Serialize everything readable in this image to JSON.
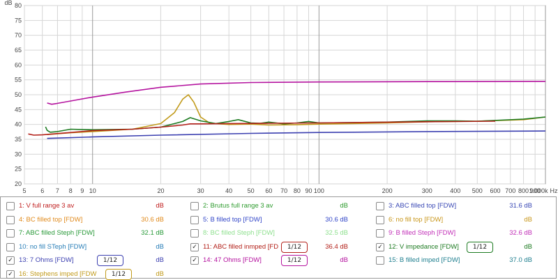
{
  "chart_data": {
    "type": "line",
    "y_unit_label": "dB",
    "x_unit_label": "Hz",
    "xscale": "log",
    "xlim": [
      5,
      1000
    ],
    "ylim": [
      20,
      80
    ],
    "grid": true,
    "yticks": [
      "20",
      "25",
      "30",
      "35",
      "40",
      "45",
      "50",
      "55",
      "60",
      "65",
      "70",
      "75",
      "80"
    ],
    "xticks": [
      {
        "v": 5,
        "t": "5"
      },
      {
        "v": 6,
        "t": "6"
      },
      {
        "v": 7,
        "t": "7"
      },
      {
        "v": 8,
        "t": "8"
      },
      {
        "v": 9,
        "t": "9"
      },
      {
        "v": 10,
        "t": "10"
      },
      {
        "v": 20,
        "t": "20"
      },
      {
        "v": 30,
        "t": "30"
      },
      {
        "v": 40,
        "t": "40"
      },
      {
        "v": 50,
        "t": "50"
      },
      {
        "v": 60,
        "t": "60"
      },
      {
        "v": 70,
        "t": "70"
      },
      {
        "v": 80,
        "t": "80"
      },
      {
        "v": 90,
        "t": "90"
      },
      {
        "v": 100,
        "t": "100"
      },
      {
        "v": 200,
        "t": "200"
      },
      {
        "v": 300,
        "t": "300"
      },
      {
        "v": 400,
        "t": "400"
      },
      {
        "v": 500,
        "t": "500"
      },
      {
        "v": 600,
        "t": "600"
      },
      {
        "v": 700,
        "t": "700"
      },
      {
        "v": 800,
        "t": "800"
      },
      {
        "v": 900,
        "t": "900"
      },
      {
        "v": 1000,
        "t": "1.000k"
      }
    ],
    "series": [
      {
        "name": "14: 47 Ohms [FDW]",
        "color": "#b4129e",
        "points": [
          [
            6.3,
            47.2
          ],
          [
            6.6,
            46.8
          ],
          [
            7,
            47.1
          ],
          [
            8,
            47.9
          ],
          [
            10,
            49.2
          ],
          [
            14,
            50.9
          ],
          [
            20,
            52.5
          ],
          [
            30,
            53.6
          ],
          [
            50,
            54.1
          ],
          [
            100,
            54.3
          ],
          [
            300,
            54.4
          ],
          [
            1000,
            54.5
          ]
        ]
      },
      {
        "name": "16: Stephens imped [FDW",
        "color": "#c19a1a",
        "points": [
          [
            6.3,
            36.6
          ],
          [
            8,
            37.2
          ],
          [
            10,
            37.6
          ],
          [
            15,
            38.4
          ],
          [
            20,
            40.3
          ],
          [
            23,
            44
          ],
          [
            25,
            48.5
          ],
          [
            26.5,
            50
          ],
          [
            28,
            47.5
          ],
          [
            30,
            42.5
          ],
          [
            33,
            40.4
          ],
          [
            40,
            40
          ],
          [
            50,
            40.1
          ],
          [
            60,
            39.8
          ],
          [
            80,
            39.9
          ],
          [
            100,
            40.1
          ],
          [
            200,
            40.5
          ],
          [
            300,
            40.9
          ],
          [
            500,
            41.1
          ],
          [
            800,
            41.6
          ],
          [
            1000,
            42.5
          ]
        ]
      },
      {
        "name": "12: V impedance [FDW]",
        "color": "#1c7a20",
        "points": [
          [
            6.2,
            39.2
          ],
          [
            6.3,
            38
          ],
          [
            6.5,
            37.4
          ],
          [
            7,
            37.6
          ],
          [
            8,
            38.4
          ],
          [
            10,
            38.2
          ],
          [
            15,
            38.4
          ],
          [
            20,
            39.1
          ],
          [
            25,
            41
          ],
          [
            27,
            42.3
          ],
          [
            30,
            41.2
          ],
          [
            35,
            40.3
          ],
          [
            40,
            41
          ],
          [
            44,
            41.6
          ],
          [
            50,
            40.5
          ],
          [
            55,
            40.4
          ],
          [
            60,
            40.8
          ],
          [
            70,
            40.2
          ],
          [
            80,
            40.5
          ],
          [
            90,
            41
          ],
          [
            100,
            40.5
          ],
          [
            200,
            40.8
          ],
          [
            300,
            41.2
          ],
          [
            400,
            41.2
          ],
          [
            500,
            41.1
          ],
          [
            800,
            41.8
          ],
          [
            1000,
            42.5
          ]
        ]
      },
      {
        "name": "11: ABC filled inmped [FD",
        "color": "#b3211a",
        "points": [
          [
            5.2,
            36.8
          ],
          [
            5.5,
            36.4
          ],
          [
            6,
            36.5
          ],
          [
            8,
            37.3
          ],
          [
            10,
            37.9
          ],
          [
            15,
            38.4
          ],
          [
            20,
            39.1
          ],
          [
            25,
            39.8
          ],
          [
            27,
            40.2
          ],
          [
            30,
            40.2
          ],
          [
            40,
            40.3
          ],
          [
            60,
            40.4
          ],
          [
            100,
            40.5
          ],
          [
            300,
            40.9
          ],
          [
            600,
            41.1
          ]
        ]
      },
      {
        "name": "13: 7 Ohms [FDW]",
        "color": "#3b3fb0",
        "points": [
          [
            6.3,
            35.3
          ],
          [
            10,
            35.8
          ],
          [
            20,
            36.4
          ],
          [
            50,
            37
          ],
          [
            100,
            37.3
          ],
          [
            300,
            37.6
          ],
          [
            1000,
            37.8
          ]
        ]
      }
    ]
  },
  "legend": [
    {
      "label": "1: V full range 3 av",
      "value": "dB",
      "color": "#c02020",
      "checked": false,
      "smooth": ""
    },
    {
      "label": "2: Brutus full range 3 av",
      "value": "dB",
      "color": "#2e9b2e",
      "checked": false,
      "smooth": ""
    },
    {
      "label": "3: ABC filled top [FDW]",
      "value": "31.6 dB",
      "color": "#3a49b5",
      "checked": false,
      "smooth": ""
    },
    {
      "label": "4: BC filled top [FDW]",
      "value": "30.6 dB",
      "color": "#e08a1c",
      "checked": false,
      "smooth": ""
    },
    {
      "label": "5: B filled top [FDW]",
      "value": "30.6 dB",
      "color": "#3347c8",
      "checked": false,
      "smooth": ""
    },
    {
      "label": "6: no fill top [FDW]",
      "value": "dB",
      "color": "#c8961a",
      "checked": false,
      "smooth": ""
    },
    {
      "label": "7: ABC filled Steph [FDW]",
      "value": "32.1 dB",
      "color": "#2a9a3a",
      "checked": false,
      "smooth": ""
    },
    {
      "label": "8: BC filled Steph [FDW]",
      "value": "32.5 dB",
      "color": "#8fe08f",
      "checked": false,
      "smooth": ""
    },
    {
      "label": "9: B filled Steph [FDW]",
      "value": "32.6 dB",
      "color": "#c231b8",
      "checked": false,
      "smooth": ""
    },
    {
      "label": "10: no fill STeph [FDW]",
      "value": "dB",
      "color": "#2a7fb8",
      "checked": false,
      "smooth": ""
    },
    {
      "label": "11: ABC filled inmped [FD",
      "value": "36.4 dB",
      "color": "#b3211a",
      "checked": true,
      "smooth": "1/12"
    },
    {
      "label": "12: V impedance [FDW]",
      "value": "dB",
      "color": "#1c7a20",
      "checked": true,
      "smooth": "1/12"
    },
    {
      "label": "13: 7 Ohms [FDW]",
      "value": "dB",
      "color": "#3b3fb0",
      "checked": true,
      "smooth": "1/12"
    },
    {
      "label": "14: 47 Ohms [FDW]",
      "value": "dB",
      "color": "#b4129e",
      "checked": true,
      "smooth": "1/12"
    },
    {
      "label": "15: B filled imped [FDW]",
      "value": "37.0 dB",
      "color": "#1f7f8f",
      "checked": false,
      "smooth": ""
    },
    {
      "label": "16: Stephens imped [FDW",
      "value": "dB",
      "color": "#c19a1a",
      "checked": true,
      "smooth": "1/12"
    }
  ]
}
